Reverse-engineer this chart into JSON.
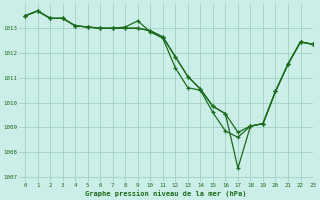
{
  "title": "Graphe pression niveau de la mer (hPa)",
  "bg_color": "#cceee8",
  "grid_color": "#99ccbb",
  "line_color": "#1a6b1a",
  "xlim": [
    -0.5,
    23
  ],
  "ylim": [
    1006.8,
    1014.0
  ],
  "yticks": [
    1007,
    1008,
    1009,
    1010,
    1011,
    1012,
    1013
  ],
  "xticks": [
    0,
    1,
    2,
    3,
    4,
    5,
    6,
    7,
    8,
    9,
    10,
    11,
    12,
    13,
    14,
    15,
    16,
    17,
    18,
    19,
    20,
    21,
    22,
    23
  ],
  "series1": [
    1013.5,
    1013.7,
    1013.4,
    1013.4,
    1013.1,
    1013.05,
    1013.0,
    1013.0,
    1013.05,
    1013.3,
    1012.85,
    1012.6,
    1011.4,
    1010.6,
    1010.5,
    1009.6,
    1008.85,
    1008.6,
    1009.05,
    1009.15,
    1010.45,
    1011.55,
    1012.45,
    1012.35
  ],
  "series2": [
    1013.5,
    1013.7,
    1013.4,
    1013.4,
    1013.1,
    1013.05,
    1013.0,
    1013.0,
    1013.0,
    1013.0,
    1012.9,
    1012.65,
    1011.85,
    1011.05,
    1010.55,
    1009.85,
    1009.55,
    1008.8,
    1009.05,
    1009.15,
    1010.45,
    1011.55,
    1012.45,
    1012.35
  ],
  "series3": [
    1013.5,
    1013.7,
    1013.4,
    1013.4,
    1013.1,
    1013.05,
    1013.0,
    1013.0,
    1013.0,
    1013.0,
    1012.9,
    1012.65,
    1011.85,
    1011.05,
    1010.55,
    1009.85,
    1009.55,
    1007.35,
    1009.05,
    1009.15,
    1010.45,
    1011.55,
    1012.45,
    1012.35
  ]
}
